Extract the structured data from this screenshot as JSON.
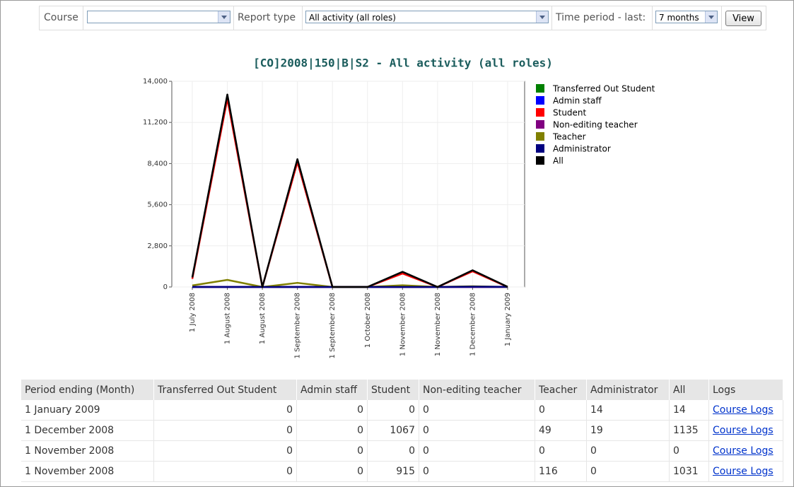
{
  "form": {
    "course_label": "Course",
    "report_type_label": "Report type",
    "report_type_value": "All activity (all roles)",
    "time_period_label": "Time period - last:",
    "time_period_value": "7 months",
    "button": "View"
  },
  "chart_data": {
    "type": "line",
    "title": "[CO]2008|150|B|S2 - All activity (all roles)",
    "categories": [
      "1 July 2008",
      "1 August 2008",
      "1 August 2008",
      "1 September 2008",
      "1 September 2008",
      "1 October 2008",
      "1 November 2008",
      "1 November 2008",
      "1 December 2008",
      "1 January 2009"
    ],
    "series": [
      {
        "name": "Transferred Out Student",
        "color": "#008000",
        "values": [
          0,
          0,
          0,
          0,
          0,
          0,
          0,
          0,
          0,
          0
        ]
      },
      {
        "name": "Admin staff",
        "color": "#0000ff",
        "values": [
          0,
          0,
          0,
          0,
          0,
          0,
          0,
          0,
          0,
          0
        ]
      },
      {
        "name": "Student",
        "color": "#ff0000",
        "values": [
          550,
          12800,
          0,
          8500,
          0,
          0,
          915,
          0,
          1067,
          0
        ]
      },
      {
        "name": "Non-editing teacher",
        "color": "#800080",
        "values": [
          0,
          0,
          0,
          0,
          0,
          0,
          0,
          0,
          0,
          0
        ]
      },
      {
        "name": "Teacher",
        "color": "#808000",
        "values": [
          100,
          480,
          0,
          280,
          0,
          0,
          116,
          0,
          49,
          0
        ]
      },
      {
        "name": "Administrator",
        "color": "#000080",
        "values": [
          0,
          0,
          0,
          0,
          0,
          0,
          0,
          0,
          19,
          14
        ]
      },
      {
        "name": "All",
        "color": "#000000",
        "values": [
          650,
          13100,
          0,
          8700,
          0,
          0,
          1031,
          0,
          1135,
          14
        ]
      }
    ],
    "ylim": [
      0,
      14000
    ],
    "yticks": [
      0,
      {
        "value": 2800,
        "label": "2,800"
      },
      {
        "value": 5600,
        "label": "5,600"
      },
      {
        "value": 8400,
        "label": "8,400"
      },
      {
        "value": 11200,
        "label": "11,200"
      },
      {
        "value": 14000,
        "label": "14,000"
      }
    ],
    "grid": true,
    "legend": "right"
  },
  "table": {
    "headers": [
      "Period ending (Month)",
      "Transferred Out Student",
      "Admin staff",
      "Student",
      "Non-editing teacher",
      "Teacher",
      "Administrator",
      "All",
      "Logs"
    ],
    "rows": [
      [
        "1 January 2009",
        0,
        0,
        0,
        0,
        0,
        14,
        14,
        "Course Logs"
      ],
      [
        "1 December 2008",
        0,
        0,
        1067,
        0,
        49,
        19,
        1135,
        "Course Logs"
      ],
      [
        "1 November 2008",
        0,
        0,
        0,
        0,
        0,
        0,
        0,
        "Course Logs"
      ],
      [
        "1 November 2008",
        0,
        0,
        915,
        0,
        116,
        0,
        1031,
        "Course Logs"
      ]
    ]
  }
}
